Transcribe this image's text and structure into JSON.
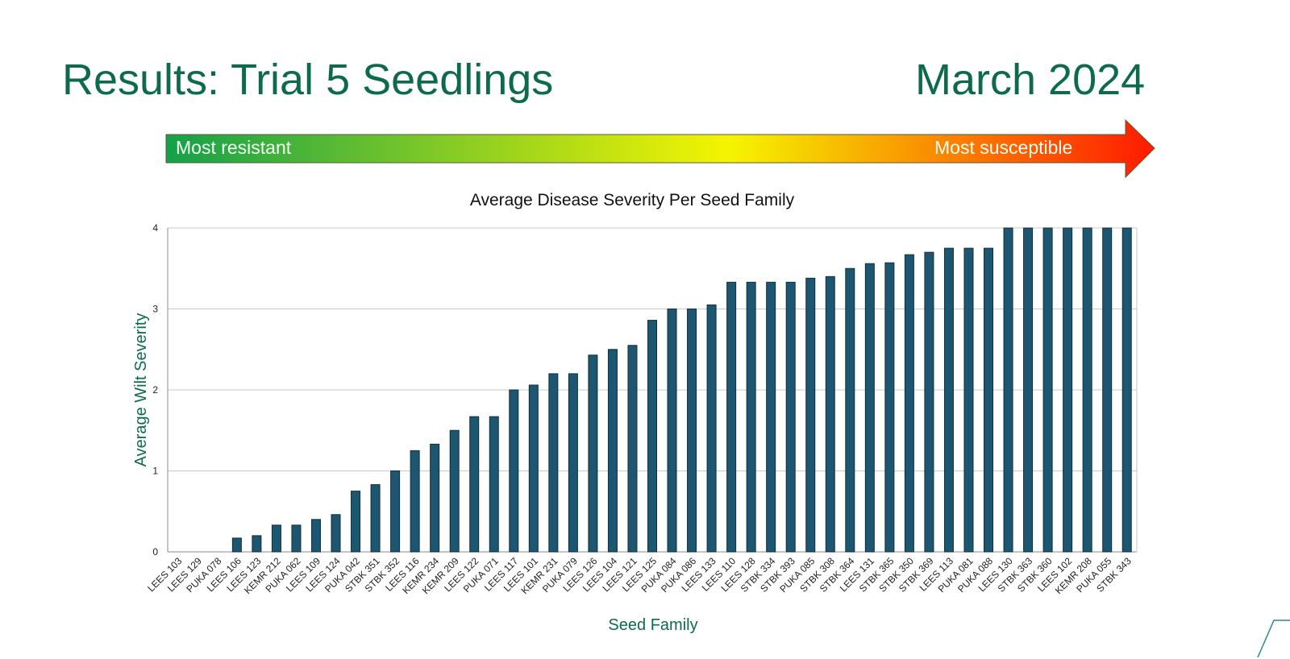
{
  "header": {
    "title": "Results: Trial 5 Seedlings",
    "date": "March 2024"
  },
  "scale_arrow": {
    "left_label": "Most resistant",
    "right_label": "Most susceptible",
    "colors": [
      "#14a04a",
      "#f5f500",
      "#ff1a00"
    ]
  },
  "chart_data": {
    "type": "bar",
    "title": "Average Disease Severity Per Seed Family",
    "xlabel": "Seed Family",
    "ylabel": "Average Wilt Severity",
    "ylim": [
      0,
      4
    ],
    "yticks": [
      0,
      1,
      2,
      3,
      4
    ],
    "grid": true,
    "bar_color": "#1d5670",
    "categories": [
      "LEES 103",
      "LEES 129",
      "PUKA 078",
      "LEES 106",
      "LEES 123",
      "KEMR 212",
      "PUKA 062",
      "LEES 109",
      "LEES 124",
      "PUKA 042",
      "STBK 351",
      "STBK 352",
      "LEES 116",
      "KEMR 234",
      "KEMR 209",
      "LEES 122",
      "PUKA 071",
      "LEES 117",
      "LEES 101",
      "KEMR 231",
      "PUKA 079",
      "LEES 126",
      "LEES 104",
      "LEES 121",
      "LEES 125",
      "PUKA 084",
      "PUKA 086",
      "LEES 133",
      "LEES 110",
      "LEES 128",
      "STBK 334",
      "STBK 393",
      "PUKA 085",
      "STBK 308",
      "STBK 364",
      "LEES 131",
      "STBK 365",
      "STBK 350",
      "STBK 369",
      "LEES 113",
      "PUKA 081",
      "PUKA 088",
      "LEES 130",
      "STBK 363",
      "STBK 360",
      "LEES 102",
      "KEMR 208",
      "PUKA 055",
      "STBK 343"
    ],
    "values": [
      0,
      0,
      0,
      0.17,
      0.2,
      0.33,
      0.33,
      0.4,
      0.46,
      0.75,
      0.83,
      1.0,
      1.25,
      1.33,
      1.5,
      1.67,
      1.67,
      2.0,
      2.06,
      2.2,
      2.2,
      2.43,
      2.5,
      2.55,
      2.86,
      3.0,
      3.0,
      3.05,
      3.33,
      3.33,
      3.33,
      3.33,
      3.38,
      3.4,
      3.5,
      3.56,
      3.57,
      3.67,
      3.7,
      3.75,
      3.75,
      3.75,
      4,
      4,
      4,
      4,
      4,
      4,
      4
    ]
  }
}
